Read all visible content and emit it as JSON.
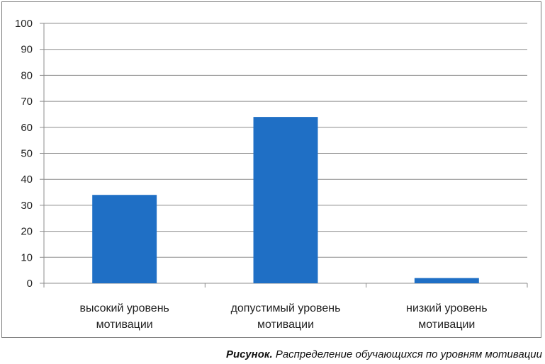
{
  "chart_data": {
    "type": "bar",
    "categories": [
      "высокий уровень мотивации",
      "допустимый уровень мотивации",
      "низкий уровень мотивации"
    ],
    "category_lines": [
      [
        "высокий уровень",
        "мотивации"
      ],
      [
        "допустимый уровень",
        "мотивации"
      ],
      [
        "низкий уровень",
        "мотивации"
      ]
    ],
    "values": [
      34,
      64,
      2
    ],
    "ylim": [
      0,
      100
    ],
    "yticks": [
      "0",
      "10",
      "20",
      "30",
      "40",
      "50",
      "60",
      "70",
      "80",
      "90",
      "100"
    ],
    "grid": true,
    "bar_color": "#1f6fc5",
    "title": "",
    "xlabel": "",
    "ylabel": ""
  },
  "caption": {
    "prefix": "Рисунок.",
    "text": "Распределение обучающихся по уровням мотивации"
  }
}
